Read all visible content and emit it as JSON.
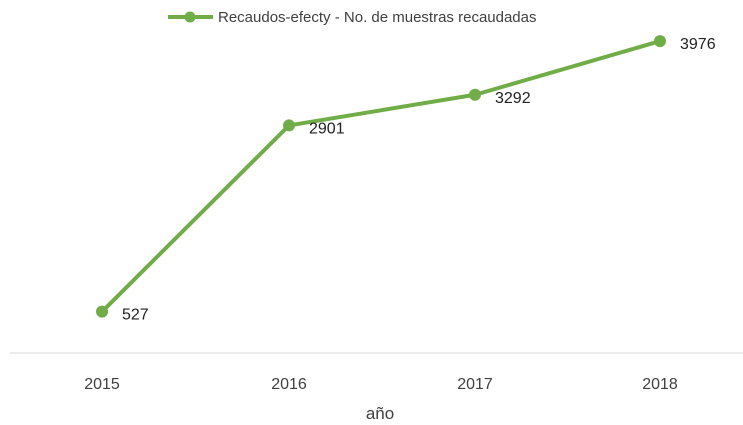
{
  "chart_data": {
    "type": "line",
    "title": "",
    "xlabel": "año",
    "ylabel": "",
    "categories": [
      "2015",
      "2016",
      "2017",
      "2018"
    ],
    "series": [
      {
        "name": "Recaudos-efecty - No. de muestras recaudadas",
        "values": [
          527,
          2901,
          3292,
          3976
        ],
        "color": "#70ad47"
      }
    ],
    "ylim": [
      0,
      4500
    ],
    "grid": false,
    "legend": "top",
    "data_labels": [
      "527",
      "2901",
      "3292",
      "3976"
    ]
  },
  "colors": {
    "series": "#70ad47",
    "axis": "#d9d9d9",
    "text": "#404040"
  }
}
